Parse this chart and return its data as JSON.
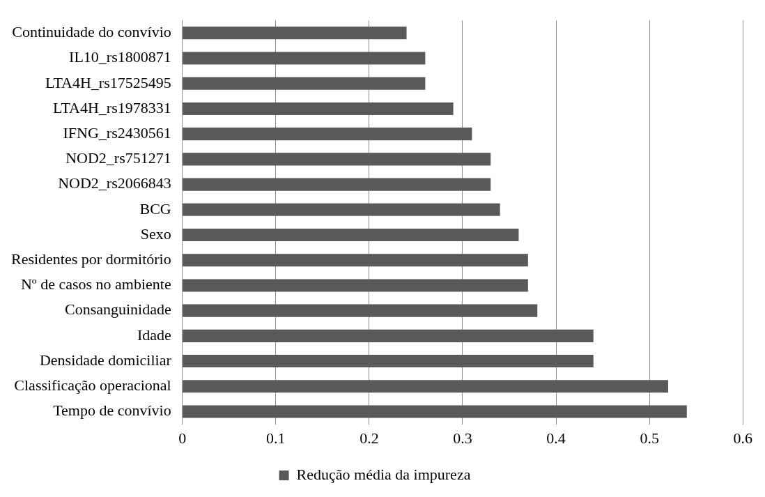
{
  "chart_data": {
    "type": "bar",
    "orientation": "horizontal",
    "categories": [
      "Continuidade do convívio",
      "IL10_rs1800871",
      "LTA4H_rs17525495",
      "LTA4H_rs1978331",
      "IFNG_rs2430561",
      "NOD2_rs751271",
      "NOD2_rs2066843",
      "BCG",
      "Sexo",
      "Residentes por dormitório",
      "Nº de casos no ambiente",
      "Consanguinidade",
      "Idade",
      "Densidade domiciliar",
      "Classificação operacional",
      "Tempo de convívio"
    ],
    "series": [
      {
        "name": "Redução média da impureza",
        "color": "#595959",
        "values": [
          0.24,
          0.26,
          0.26,
          0.29,
          0.31,
          0.33,
          0.33,
          0.34,
          0.36,
          0.37,
          0.37,
          0.38,
          0.44,
          0.44,
          0.52,
          0.54
        ]
      }
    ],
    "xlim": [
      0,
      0.6
    ],
    "xticks": [
      0,
      0.1,
      0.2,
      0.3,
      0.4,
      0.5,
      0.6
    ],
    "grid": "x",
    "legend": "bottom"
  }
}
